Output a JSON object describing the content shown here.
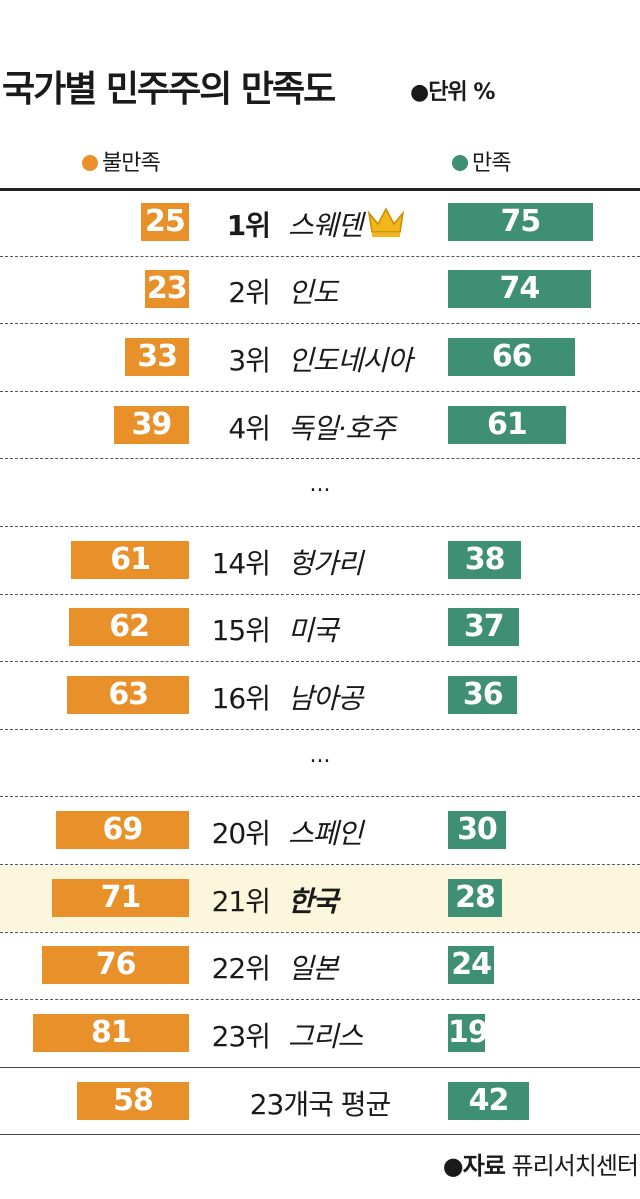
{
  "title": "국가별 민주주의 만족도",
  "unit_label": "●단위 %",
  "legend": {
    "dissatisfied": "●불만족",
    "satisfied": "●만족"
  },
  "colors": {
    "dissatisfied": "#e8902a",
    "satisfied": "#3f8f74",
    "highlight_row": "#fcf7dc"
  },
  "ellipsis": "...",
  "chart_data": {
    "type": "bar",
    "series": [
      {
        "name": "불만족"
      },
      {
        "name": "만족"
      }
    ],
    "rows": [
      {
        "rank": "1위",
        "country": "스웨덴",
        "dissatisfied": 25,
        "satisfied": 75,
        "crown": true
      },
      {
        "rank": "2위",
        "country": "인도",
        "dissatisfied": 23,
        "satisfied": 74
      },
      {
        "rank": "3위",
        "country": "인도네시아",
        "dissatisfied": 33,
        "satisfied": 66
      },
      {
        "rank": "4위",
        "country": "독일·호주",
        "dissatisfied": 39,
        "satisfied": 61
      },
      {
        "rank": "14위",
        "country": "헝가리",
        "dissatisfied": 61,
        "satisfied": 38
      },
      {
        "rank": "15위",
        "country": "미국",
        "dissatisfied": 62,
        "satisfied": 37
      },
      {
        "rank": "16위",
        "country": "남아공",
        "dissatisfied": 63,
        "satisfied": 36
      },
      {
        "rank": "20위",
        "country": "스페인",
        "dissatisfied": 69,
        "satisfied": 30
      },
      {
        "rank": "21위",
        "country": "한국",
        "dissatisfied": 71,
        "satisfied": 28,
        "highlight": true
      },
      {
        "rank": "22위",
        "country": "일본",
        "dissatisfied": 76,
        "satisfied": 24
      },
      {
        "rank": "23위",
        "country": "그리스",
        "dissatisfied": 81,
        "satisfied": 19
      }
    ],
    "average": {
      "label": "23개국 평균",
      "dissatisfied": 58,
      "satisfied": 42
    }
  },
  "source": {
    "label": "●자료",
    "name": "퓨리서치센터"
  }
}
